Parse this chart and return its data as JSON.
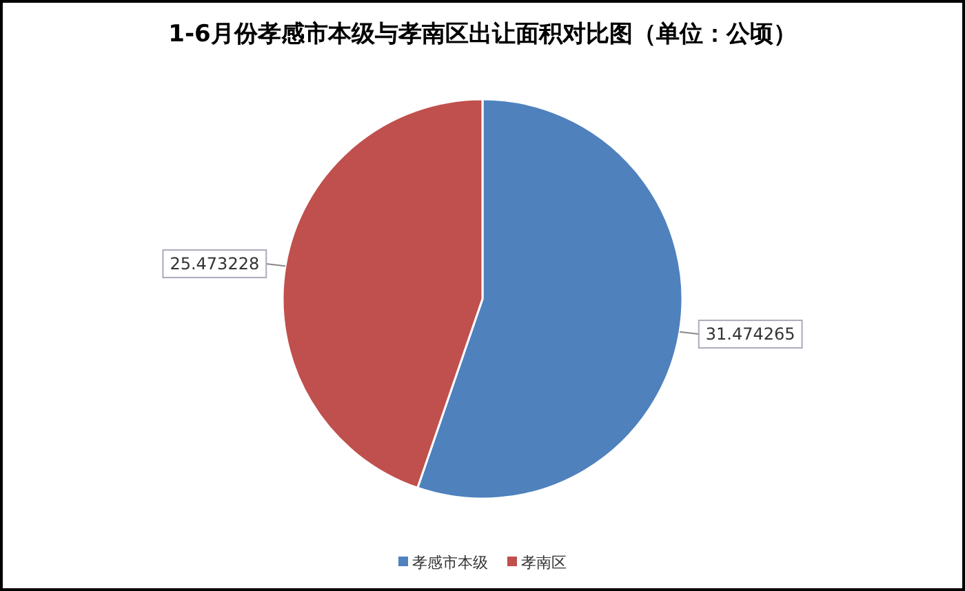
{
  "chart_data": {
    "type": "pie",
    "title": "1-6月份孝感市本级与孝南区出让面积对比图（单位：公顷）",
    "categories": [
      "孝感市本级",
      "孝南区"
    ],
    "values": [
      31.474265,
      25.473228
    ],
    "colors": [
      "#4f81bd",
      "#c0504d"
    ],
    "data_labels": true,
    "legend": "bottom"
  }
}
